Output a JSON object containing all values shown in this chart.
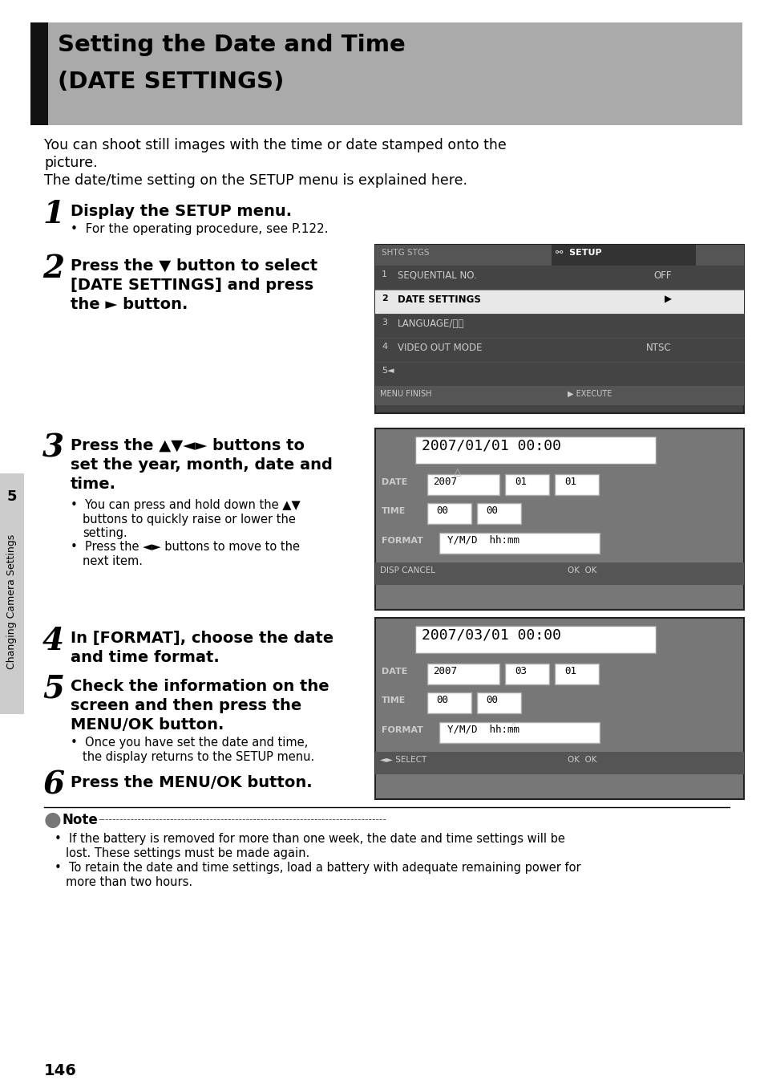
{
  "title_line1": "Setting the Date and Time",
  "title_line2": "(DATE SETTINGS)",
  "title_bg": "#aaaaaa",
  "title_bar_color": "#111111",
  "page_bg": "#ffffff",
  "intro1": "You can shoot still images with the time or date stamped onto the",
  "intro2": "picture.",
  "intro3": "The date/time setting on the SETUP menu is explained here.",
  "step1_num": "1",
  "step1_head": "Display the SETUP menu.",
  "step1_bullet": "For the operating procedure, see P.122.",
  "step2_num": "2",
  "step2_line1": "Press the ▼ button to select",
  "step2_line2": "[DATE SETTINGS] and press",
  "step2_line3": "the ► button.",
  "step3_num": "3",
  "step3_line1": "Press the ▲▼◄► buttons to",
  "step3_line2": "set the year, month, date and",
  "step3_line3": "time.",
  "step3_b1a": "You can press and hold down the ▲▼",
  "step3_b1b": "buttons to quickly raise or lower the",
  "step3_b1c": "setting.",
  "step3_b2a": "Press the ◄► buttons to move to the",
  "step3_b2b": "next item.",
  "step4_num": "4",
  "step4_line1": "In [FORMAT], choose the date",
  "step4_line2": "and time format.",
  "step5_num": "5",
  "step5_line1": "Check the information on the",
  "step5_line2": "screen and then press the",
  "step5_line3": "MENU/OK button.",
  "step5_b1a": "Once you have set the date and time,",
  "step5_b1b": "the display returns to the SETUP menu.",
  "step6_num": "6",
  "step6_head": "Press the MENU/OK button.",
  "note_head": "Note",
  "note_b1a": "If the battery is removed for more than one week, the date and time settings will be",
  "note_b1b": "lost. These settings must be made again.",
  "note_b2a": "To retain the date and time settings, load a battery with adequate remaining power for",
  "note_b2b": "more than two hours.",
  "page_num": "146",
  "sidebar_text": "Changing Camera Settings",
  "sidebar_num": "5",
  "screen_dark": "#444444",
  "screen_darker": "#333333",
  "screen_mid": "#666666",
  "screen_highlight": "#cccccc",
  "screen_text_light": "#dddddd",
  "screen_white": "#ffffff"
}
